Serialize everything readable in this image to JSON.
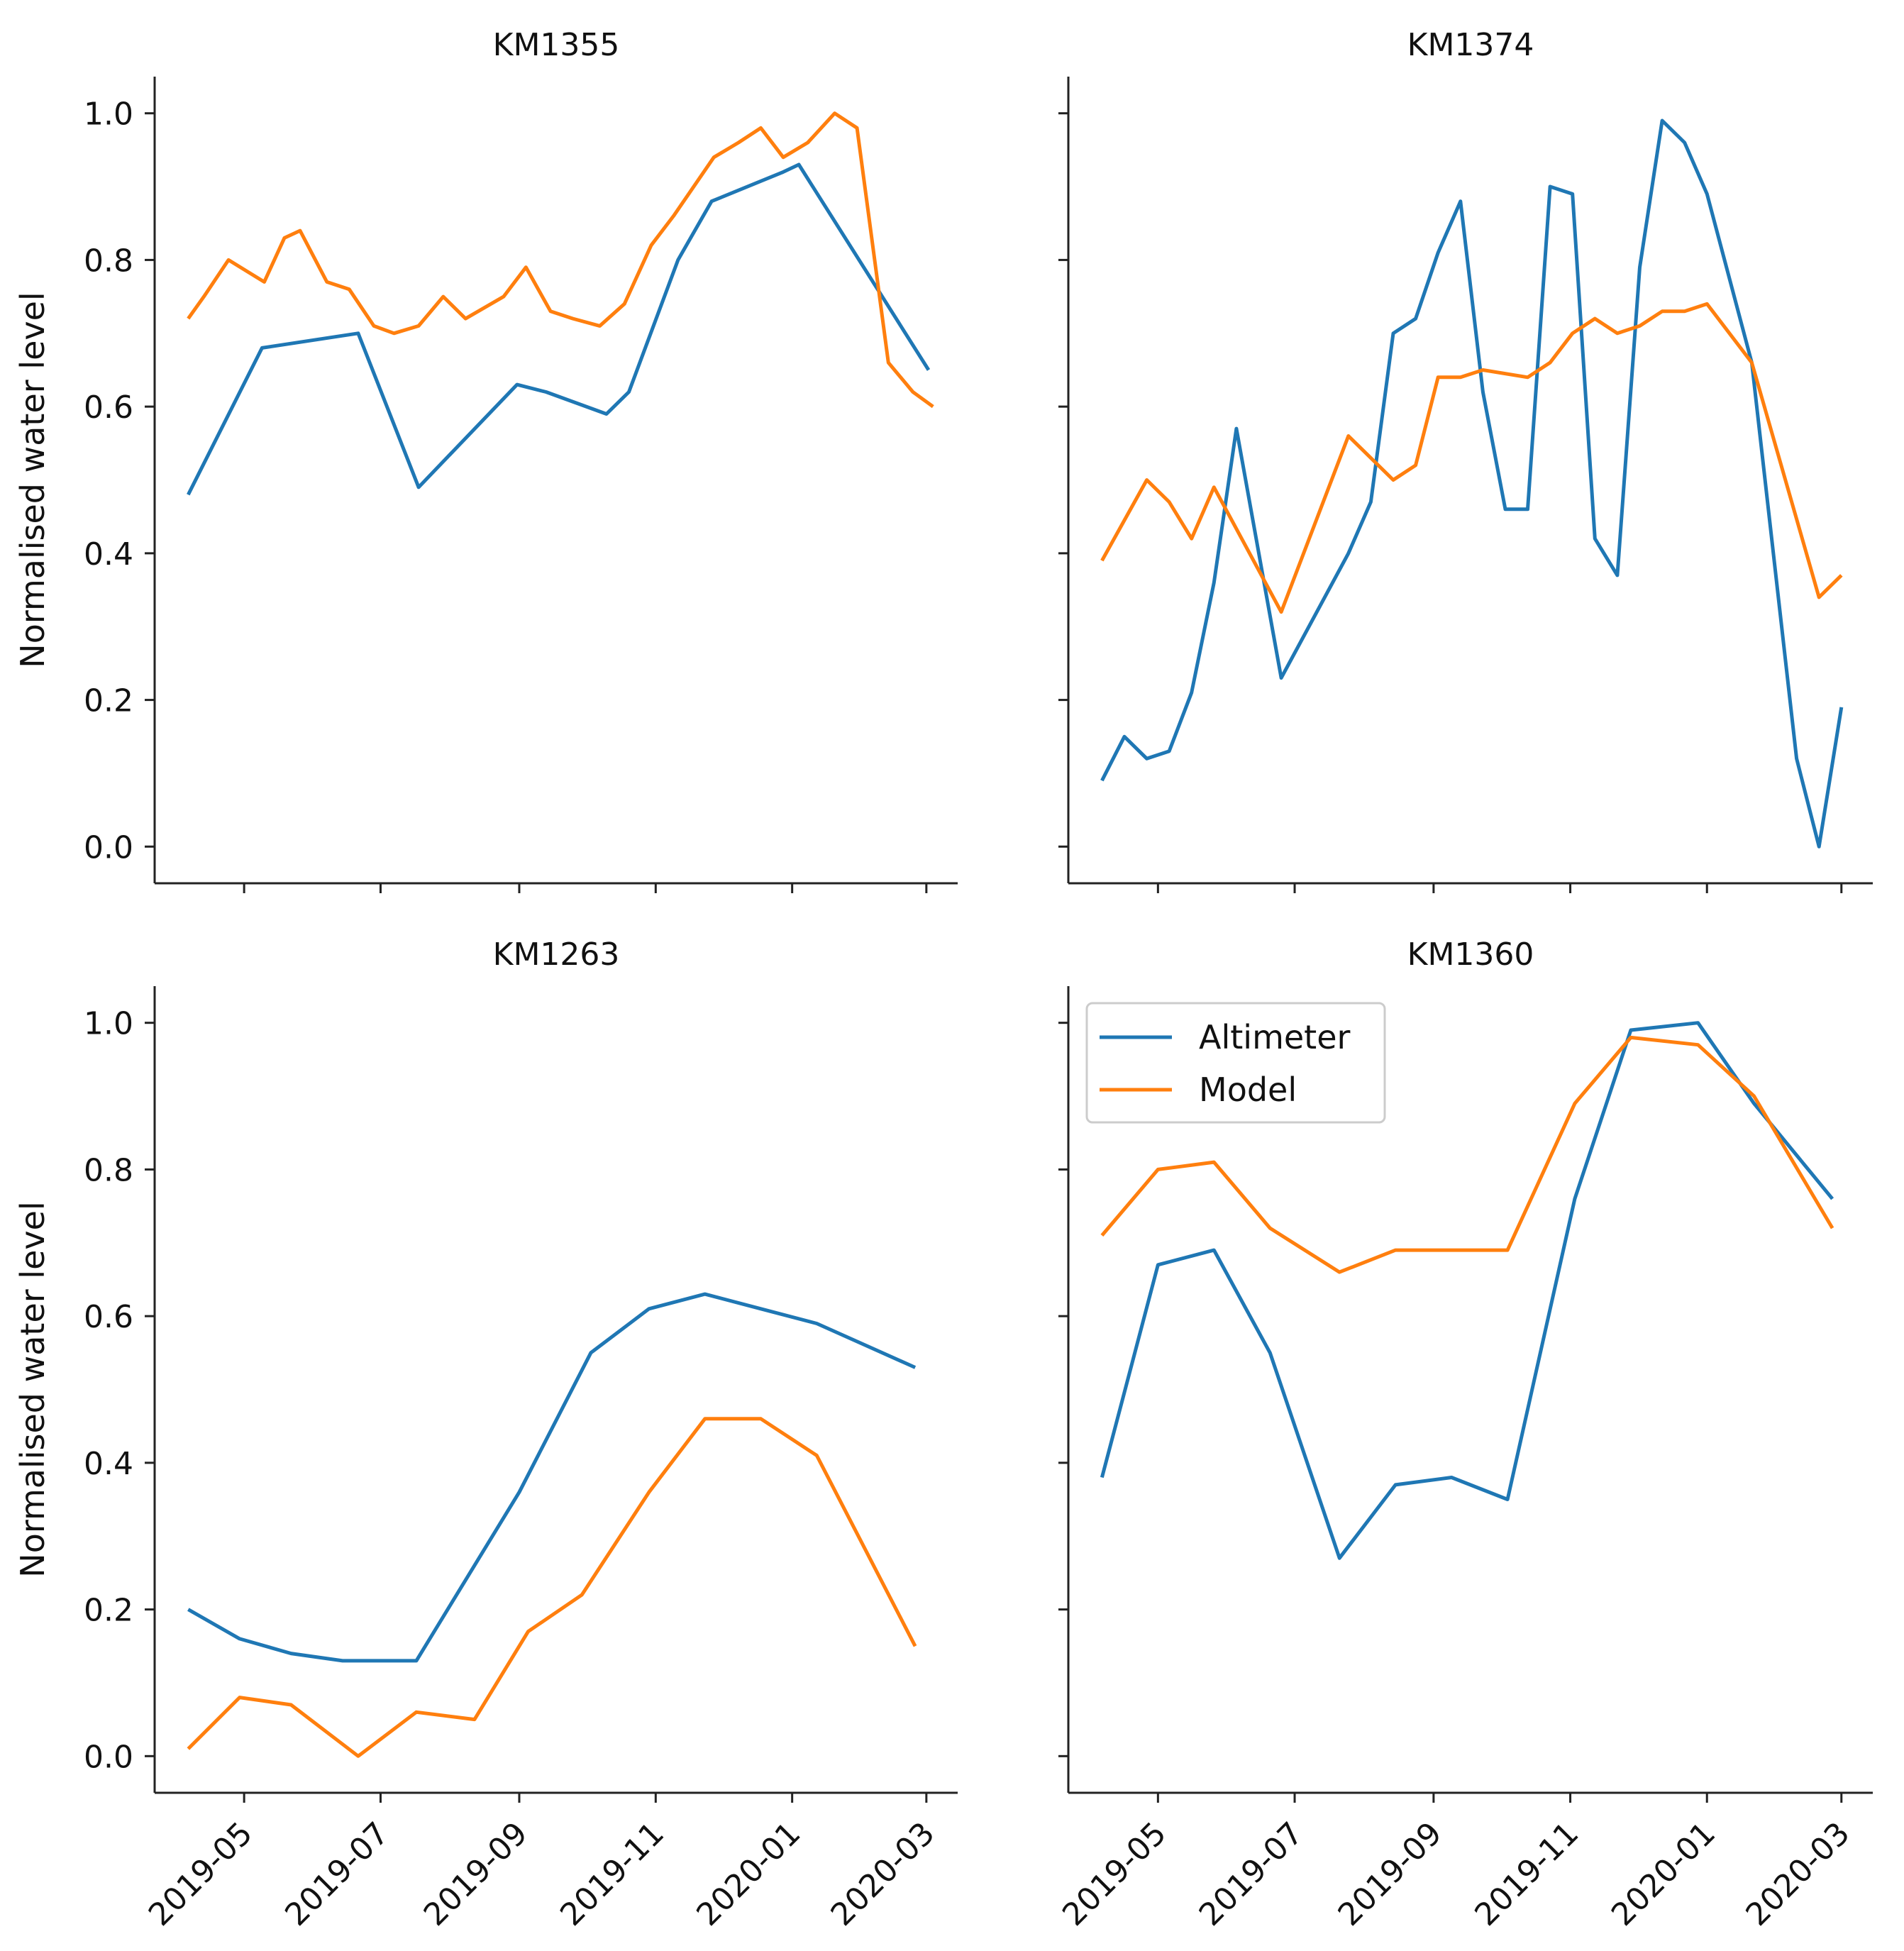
{
  "chart_data": [
    {
      "type": "line",
      "title": "KM1355",
      "ylabel": "Normalised water level",
      "xlabel": "",
      "xlim": [
        "2019-03-22",
        "2020-03-15"
      ],
      "ylim": [
        -0.05,
        1.05
      ],
      "yticks": [
        0.0,
        0.2,
        0.4,
        0.6,
        0.8,
        1.0
      ],
      "yticklabels": [
        "0.0",
        "0.2",
        "0.4",
        "0.6",
        "0.8",
        "1.0"
      ],
      "xticks": [
        "2019-05-01",
        "2019-07-01",
        "2019-09-01",
        "2019-11-01",
        "2020-01-01",
        "2020-03-01"
      ],
      "xticklabels": [],
      "series": [
        {
          "name": "Altimeter",
          "color": "#1f77b4",
          "x": [
            "2019-04-06",
            "2019-05-09",
            "2019-06-21",
            "2019-07-18",
            "2019-08-31",
            "2019-09-13",
            "2019-10-10",
            "2019-10-20",
            "2019-11-11",
            "2019-11-26",
            "2019-12-28",
            "2020-01-04",
            "2020-03-02"
          ],
          "y": [
            0.48,
            0.68,
            0.7,
            0.49,
            0.63,
            0.62,
            0.59,
            0.62,
            0.8,
            0.88,
            0.92,
            0.93,
            0.65
          ]
        },
        {
          "name": "Model",
          "color": "#ff7f0e",
          "x": [
            "2019-04-06",
            "2019-04-13",
            "2019-04-24",
            "2019-05-10",
            "2019-05-19",
            "2019-05-26",
            "2019-06-07",
            "2019-06-17",
            "2019-06-28",
            "2019-07-07",
            "2019-07-18",
            "2019-07-29",
            "2019-08-08",
            "2019-08-25",
            "2019-09-04",
            "2019-09-15",
            "2019-09-25",
            "2019-10-07",
            "2019-10-18",
            "2019-10-30",
            "2019-11-09",
            "2019-11-27",
            "2019-12-08",
            "2019-12-18",
            "2019-12-28",
            "2020-01-08",
            "2020-01-20",
            "2020-01-30",
            "2020-02-13",
            "2020-02-24",
            "2020-03-04"
          ],
          "y": [
            0.72,
            0.75,
            0.8,
            0.77,
            0.83,
            0.84,
            0.77,
            0.76,
            0.71,
            0.7,
            0.71,
            0.75,
            0.72,
            0.75,
            0.79,
            0.73,
            0.72,
            0.71,
            0.74,
            0.82,
            0.86,
            0.94,
            0.96,
            0.98,
            0.94,
            0.96,
            1.0,
            0.98,
            0.66,
            0.62,
            0.6
          ]
        }
      ]
    },
    {
      "type": "line",
      "title": "KM1374",
      "ylabel": "",
      "xlabel": "",
      "xlim": [
        "2019-03-22",
        "2020-03-15"
      ],
      "ylim": [
        -0.05,
        1.05
      ],
      "yticks": [
        0.0,
        0.2,
        0.4,
        0.6,
        0.8,
        1.0
      ],
      "yticklabels": [],
      "xticks": [
        "2019-05-01",
        "2019-07-01",
        "2019-09-01",
        "2019-11-01",
        "2020-01-01",
        "2020-03-01"
      ],
      "xticklabels": [],
      "series": [
        {
          "name": "Altimeter",
          "color": "#1f77b4",
          "x": [
            "2019-04-06",
            "2019-04-16",
            "2019-04-26",
            "2019-05-06",
            "2019-05-16",
            "2019-05-26",
            "2019-06-05",
            "2019-06-25",
            "2019-07-25",
            "2019-08-04",
            "2019-08-14",
            "2019-08-24",
            "2019-09-03",
            "2019-09-13",
            "2019-09-23",
            "2019-10-03",
            "2019-10-13",
            "2019-10-23",
            "2019-11-02",
            "2019-11-12",
            "2019-11-22",
            "2019-12-02",
            "2019-12-12",
            "2019-12-22",
            "2020-01-01",
            "2020-01-21",
            "2020-02-10",
            "2020-02-20",
            "2020-03-01"
          ],
          "y": [
            0.09,
            0.15,
            0.12,
            0.13,
            0.21,
            0.36,
            0.57,
            0.23,
            0.4,
            0.47,
            0.7,
            0.72,
            0.81,
            0.88,
            0.62,
            0.46,
            0.46,
            0.9,
            0.89,
            0.42,
            0.37,
            0.79,
            0.99,
            0.96,
            0.89,
            0.66,
            0.12,
            0.0,
            0.19
          ]
        },
        {
          "name": "Model",
          "color": "#ff7f0e",
          "x": [
            "2019-04-06",
            "2019-04-26",
            "2019-05-06",
            "2019-05-16",
            "2019-05-26",
            "2019-06-25",
            "2019-07-25",
            "2019-08-14",
            "2019-08-24",
            "2019-09-03",
            "2019-09-13",
            "2019-09-23",
            "2019-10-13",
            "2019-10-23",
            "2019-11-02",
            "2019-11-12",
            "2019-11-22",
            "2019-12-02",
            "2019-12-12",
            "2019-12-22",
            "2020-01-01",
            "2020-01-21",
            "2020-02-20",
            "2020-03-01"
          ],
          "y": [
            0.39,
            0.5,
            0.47,
            0.42,
            0.49,
            0.32,
            0.56,
            0.5,
            0.52,
            0.64,
            0.64,
            0.65,
            0.64,
            0.66,
            0.7,
            0.72,
            0.7,
            0.71,
            0.73,
            0.73,
            0.74,
            0.66,
            0.34,
            0.37
          ]
        }
      ]
    },
    {
      "type": "line",
      "title": "KM1263",
      "ylabel": "Normalised water level",
      "xlabel": "",
      "xlim": [
        "2019-03-22",
        "2020-03-15"
      ],
      "ylim": [
        -0.05,
        1.05
      ],
      "yticks": [
        0.0,
        0.2,
        0.4,
        0.6,
        0.8,
        1.0
      ],
      "yticklabels": [
        "0.0",
        "0.2",
        "0.4",
        "0.6",
        "0.8",
        "1.0"
      ],
      "xticks": [
        "2019-05-01",
        "2019-07-01",
        "2019-09-01",
        "2019-11-01",
        "2020-01-01",
        "2020-03-01"
      ],
      "xticklabels": [
        "2019-05",
        "2019-07",
        "2019-09",
        "2019-11",
        "2020-01",
        "2020-03"
      ],
      "series": [
        {
          "name": "Altimeter",
          "color": "#1f77b4",
          "x": [
            "2019-04-06",
            "2019-04-29",
            "2019-05-22",
            "2019-06-14",
            "2019-07-17",
            "2019-09-01",
            "2019-10-03",
            "2019-10-29",
            "2019-11-23",
            "2019-12-18",
            "2020-01-12",
            "2020-02-25"
          ],
          "y": [
            0.2,
            0.16,
            0.14,
            0.13,
            0.13,
            0.36,
            0.55,
            0.61,
            0.63,
            0.61,
            0.59,
            0.53
          ]
        },
        {
          "name": "Model",
          "color": "#ff7f0e",
          "x": [
            "2019-04-06",
            "2019-04-29",
            "2019-05-22",
            "2019-06-21",
            "2019-07-17",
            "2019-08-12",
            "2019-09-05",
            "2019-09-29",
            "2019-10-29",
            "2019-11-23",
            "2019-12-18",
            "2020-01-12",
            "2020-02-25"
          ],
          "y": [
            0.01,
            0.08,
            0.07,
            0.0,
            0.06,
            0.05,
            0.17,
            0.22,
            0.36,
            0.46,
            0.46,
            0.41,
            0.15
          ]
        }
      ]
    },
    {
      "type": "line",
      "title": "KM1360",
      "ylabel": "",
      "xlabel": "",
      "xlim": [
        "2019-03-22",
        "2020-03-15"
      ],
      "ylim": [
        -0.05,
        1.05
      ],
      "yticks": [
        0.0,
        0.2,
        0.4,
        0.6,
        0.8,
        1.0
      ],
      "yticklabels": [],
      "xticks": [
        "2019-05-01",
        "2019-07-01",
        "2019-09-01",
        "2019-11-01",
        "2020-01-01",
        "2020-03-01"
      ],
      "xticklabels": [
        "2019-05",
        "2019-07",
        "2019-09",
        "2019-11",
        "2020-01",
        "2020-03"
      ],
      "legend": {
        "position": "upper-left",
        "entries": [
          "Altimeter",
          "Model"
        ]
      },
      "series": [
        {
          "name": "Altimeter",
          "color": "#1f77b4",
          "x": [
            "2019-04-06",
            "2019-05-01",
            "2019-05-26",
            "2019-06-20",
            "2019-07-21",
            "2019-08-15",
            "2019-09-09",
            "2019-10-04",
            "2019-11-03",
            "2019-11-28",
            "2019-12-28",
            "2020-01-22",
            "2020-02-26"
          ],
          "y": [
            0.38,
            0.67,
            0.69,
            0.55,
            0.27,
            0.37,
            0.38,
            0.35,
            0.76,
            0.99,
            1.0,
            0.89,
            0.76
          ]
        },
        {
          "name": "Model",
          "color": "#ff7f0e",
          "x": [
            "2019-04-06",
            "2019-05-01",
            "2019-05-26",
            "2019-06-20",
            "2019-07-21",
            "2019-08-15",
            "2019-09-09",
            "2019-10-04",
            "2019-11-03",
            "2019-11-28",
            "2019-12-28",
            "2020-01-22",
            "2020-02-26"
          ],
          "y": [
            0.71,
            0.8,
            0.81,
            0.72,
            0.66,
            0.69,
            0.69,
            0.69,
            0.89,
            0.98,
            0.97,
            0.9,
            0.72
          ]
        }
      ]
    }
  ]
}
